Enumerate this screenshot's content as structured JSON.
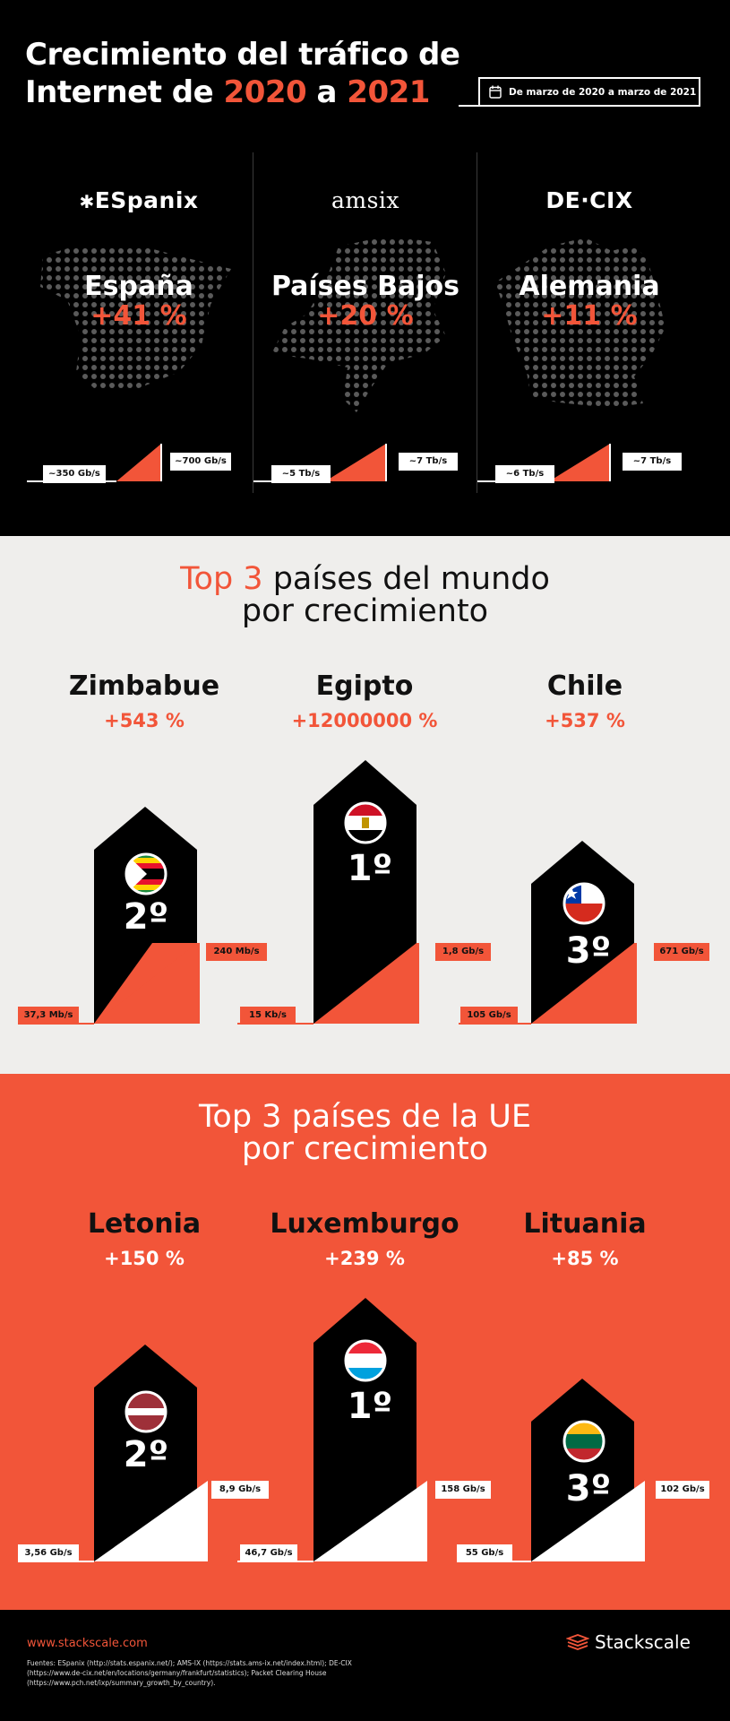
{
  "header": {
    "title_line1": "Crecimiento del tráfico de",
    "title_line2_a": "Internet de ",
    "title_year1": "2020",
    "title_line2_b": " a ",
    "title_year2": "2021",
    "date_range": "De marzo de 2020 a marzo de 2021"
  },
  "ixps": [
    {
      "logo": "ESpanix",
      "country": "España",
      "growth": "+41 %",
      "from": "~350 Gb/s",
      "to": "~700 Gb/s"
    },
    {
      "logo": "amsix",
      "country": "Países Bajos",
      "growth": "+20 %",
      "from": "~5 Tb/s",
      "to": "~7 Tb/s"
    },
    {
      "logo": "DE·CIX",
      "country": "Alemania",
      "growth": "+11 %",
      "from": "~6 Tb/s",
      "to": "~7 Tb/s"
    }
  ],
  "world": {
    "title_hl": "Top 3",
    "title_rest": " países del mundo",
    "title_line2": "por crecimiento",
    "countries": [
      {
        "name": "Zimbabue",
        "growth": "+543 %",
        "rank": "2º",
        "from": "37,3 Mb/s",
        "to": "240 Mb/s",
        "flag": "zimbabwe-flag"
      },
      {
        "name": "Egipto",
        "growth": "+12000000 %",
        "rank": "1º",
        "from": "15 Kb/s",
        "to": "1,8 Gb/s",
        "flag": "egypt-flag"
      },
      {
        "name": "Chile",
        "growth": "+537 %",
        "rank": "3º",
        "from": "105 Gb/s",
        "to": "671 Gb/s",
        "flag": "chile-flag"
      }
    ]
  },
  "eu": {
    "title_hl": "Top 3",
    "title_rest": " países de la UE",
    "title_line2": "por crecimiento",
    "countries": [
      {
        "name": "Letonia",
        "growth": "+150 %",
        "rank": "2º",
        "from": "3,56 Gb/s",
        "to": "8,9 Gb/s",
        "flag": "latvia-flag"
      },
      {
        "name": "Luxemburgo",
        "growth": "+239 %",
        "rank": "1º",
        "from": "46,7 Gb/s",
        "to": "158 Gb/s",
        "flag": "luxembourg-flag"
      },
      {
        "name": "Lituania",
        "growth": "+85 %",
        "rank": "3º",
        "from": "55 Gb/s",
        "to": "102 Gb/s",
        "flag": "lithuania-flag"
      }
    ]
  },
  "footer": {
    "url": "www.stackscale.com",
    "sources": "Fuentes: ESpanix (http://stats.espanix.net/); AMS-IX (https://stats.ams-ix.net/index.html); DE-CIX (https://www.de-cix.net/en/locations/germany/frankfurt/statistics); Packet Clearing House (https://www.pch.net/ixp/summary_growth_by_country).",
    "brand": "Stackscale"
  },
  "colors": {
    "accent": "#f25539",
    "black": "#000000",
    "light": "#efeeec"
  }
}
